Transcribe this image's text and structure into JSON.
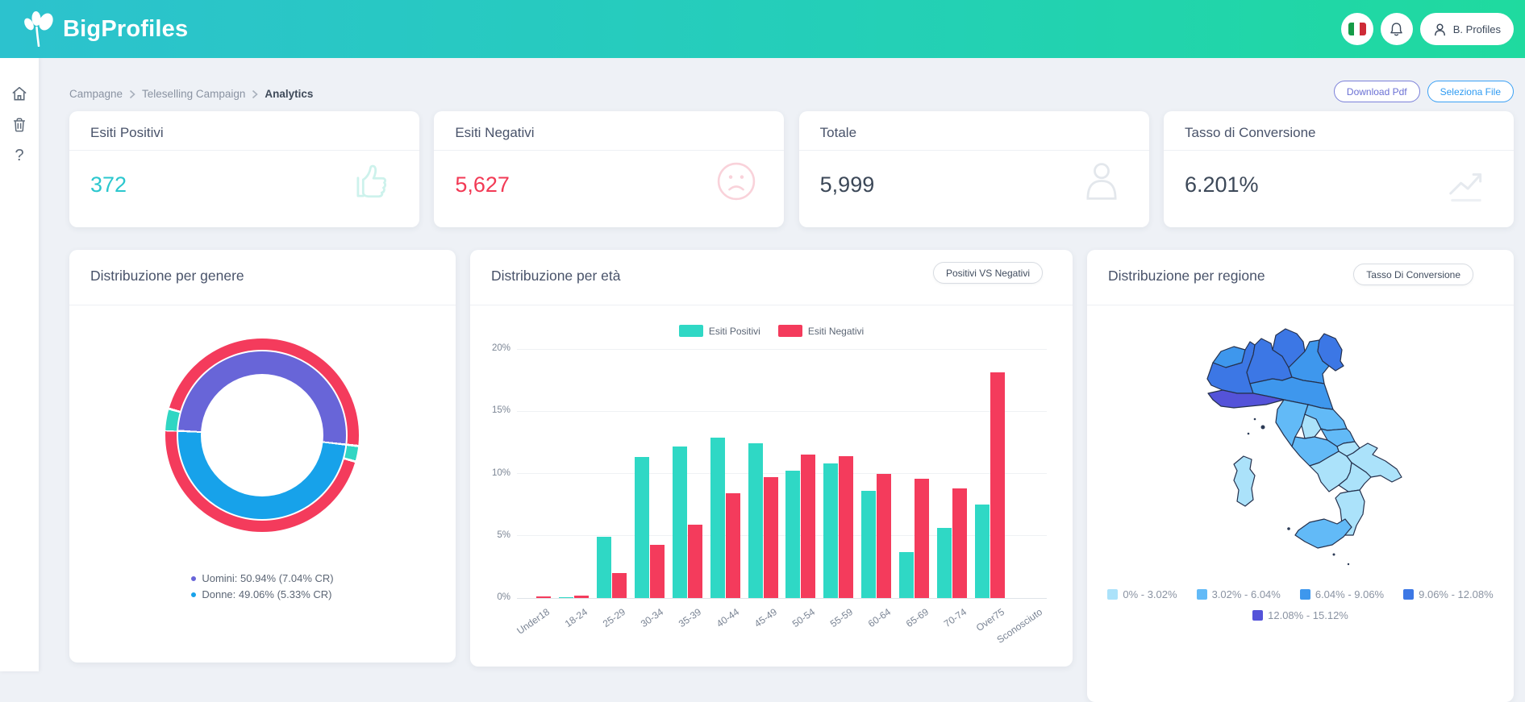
{
  "header": {
    "brand": "BigProfiles",
    "user": "B. Profiles"
  },
  "breadcrumb": {
    "items": [
      "Campagne",
      "Teleselling Campaign",
      "Analytics"
    ]
  },
  "actions": {
    "download_pdf": "Download Pdf",
    "seleziona_file": "Seleziona File"
  },
  "kpis": {
    "positivi": {
      "title": "Esiti Positivi",
      "value": "372"
    },
    "negativi": {
      "title": "Esiti Negativi",
      "value": "5,627"
    },
    "totale": {
      "title": "Totale",
      "value": "5,999"
    },
    "tasso": {
      "title": "Tasso di Conversione",
      "value": "6.201%"
    }
  },
  "chart_data": [
    {
      "type": "donut",
      "title": "Distribuzione per genere",
      "series": [
        {
          "name": "Uomini",
          "pct": 50.94,
          "cr": 7.04,
          "color": "#6865D8"
        },
        {
          "name": "Donne",
          "pct": 49.06,
          "cr": 5.33,
          "color": "#17A2EA"
        }
      ],
      "positive_color": "#30D6C3",
      "negative_color": "#F43B5C",
      "legend": [
        "Uomini: 50.94% (7.04% CR)",
        "Donne: 49.06% (5.33% CR)"
      ],
      "legend_marker_colors": [
        "#6865D8",
        "#17A2EA"
      ]
    },
    {
      "type": "bar",
      "title": "Distribuzione per età",
      "button": "Positivi VS Negativi",
      "categories": [
        "Under18",
        "18-24",
        "25-29",
        "30-34",
        "35-39",
        "40-44",
        "45-49",
        "50-54",
        "55-59",
        "60-64",
        "65-69",
        "70-74",
        "Over75",
        "Sconosciuto"
      ],
      "series": [
        {
          "name": "Esiti Positivi",
          "color": "#2FD8C5",
          "values": [
            0,
            0.05,
            4.9,
            11.3,
            12.2,
            12.9,
            12.4,
            10.2,
            10.8,
            8.6,
            3.7,
            5.6,
            7.5,
            0
          ]
        },
        {
          "name": "Esiti Negativi",
          "color": "#F43B5C",
          "values": [
            0.1,
            0.2,
            2.0,
            4.3,
            5.9,
            8.4,
            9.7,
            11.5,
            11.4,
            10.0,
            9.6,
            8.8,
            18.1,
            0
          ]
        }
      ],
      "ylim": [
        0,
        20
      ],
      "yticks": [
        "0%",
        "5%",
        "10%",
        "15%",
        "20%"
      ],
      "grid": true,
      "legend_position": "top"
    },
    {
      "type": "choropleth",
      "title": "Distribuzione per regione",
      "button": "Tasso Di Conversione",
      "legend": [
        {
          "label": "0% - 3.02%",
          "color": "#ABE2FA"
        },
        {
          "label": "3.02% - 6.04%",
          "color": "#62BAF7"
        },
        {
          "label": "6.04% - 9.06%",
          "color": "#3E97ED"
        },
        {
          "label": "9.06% - 12.08%",
          "color": "#3C77E5"
        },
        {
          "label": "12.08% - 15.12%",
          "color": "#5453D9"
        }
      ],
      "regions": {
        "valle-daosta": 3,
        "piemonte": 4,
        "lombardia": 4,
        "trentino-alto-adige": 4,
        "veneto": 3,
        "friuli-venezia-giulia": 4,
        "liguria": 5,
        "emilia-romagna": 3,
        "toscana": 2,
        "umbria": 1,
        "marche": 2,
        "lazio": 2,
        "abruzzo": 2,
        "molise": 1,
        "campania": 1,
        "puglia": 1,
        "basilicata": 1,
        "calabria": 1,
        "sicilia": 2,
        "sardegna": 1
      }
    }
  ]
}
